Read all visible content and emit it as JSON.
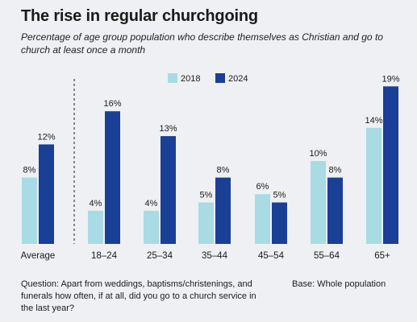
{
  "chart_data": {
    "type": "bar",
    "title": "The rise in regular churchgoing",
    "subtitle": "Percentage of age group population who describe themselves as Christian and go to church at least once a month",
    "categories": [
      "Average",
      "18–24",
      "25–34",
      "35–44",
      "45–54",
      "55–64",
      "65+"
    ],
    "series": [
      {
        "name": "2018",
        "color": "#a8dbe3",
        "values": [
          8,
          4,
          4,
          5,
          6,
          10,
          14
        ],
        "labels": [
          "8%",
          "4%",
          "4%",
          "5%",
          "6%",
          "10%",
          "14%"
        ]
      },
      {
        "name": "2024",
        "color": "#1a3f96",
        "values": [
          12,
          16,
          13,
          8,
          5,
          8,
          19
        ],
        "labels": [
          "12%",
          "16%",
          "13%",
          "8%",
          "5%",
          "8%",
          "19%"
        ]
      }
    ],
    "xlabel": "",
    "ylabel": "",
    "ylim": [
      0,
      20
    ],
    "grid": false,
    "legend": "top-center",
    "separator_after_category": "Average"
  },
  "footnote": "Question: Apart from weddings, baptisms/christenings, and funerals how often, if at all, did you go to a church service in the last year?",
  "base_note": "Base: Whole population"
}
